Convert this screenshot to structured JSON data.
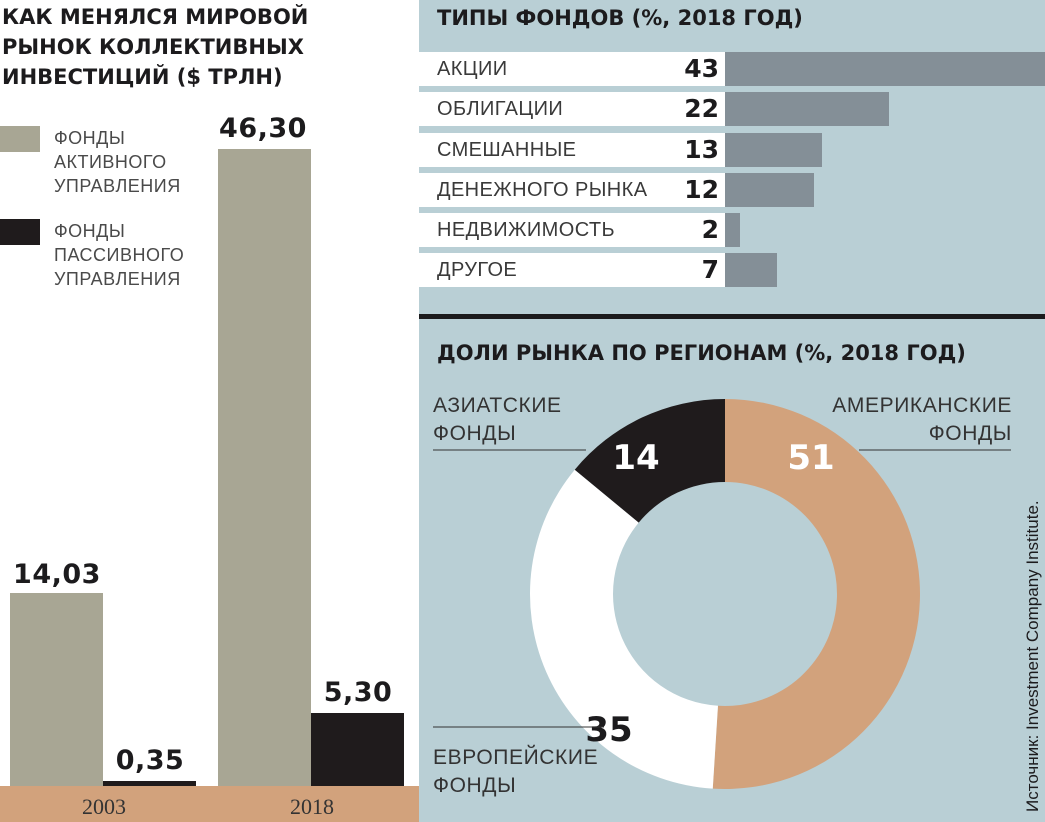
{
  "left_chart": {
    "title": [
      "КАК МЕНЯЛСЯ МИРОВОЙ",
      "РЫНОК КОЛЛЕКТИВНЫХ",
      "ИНВЕСТИЦИЙ ($ ТРЛН)"
    ],
    "legend": [
      {
        "lines": [
          "ФОНДЫ",
          "АКТИВНОГО",
          "УПРАВЛЕНИЯ"
        ],
        "color": "#a8a694"
      },
      {
        "lines": [
          "ФОНДЫ",
          "ПАССИВНОГО",
          "УПРАВЛЕНИЯ"
        ],
        "color": "#1f1b1c"
      }
    ],
    "bar_labels": {
      "a2003": "14,03",
      "p2003": "0,35",
      "a2018": "46,30",
      "p2018": "5,30"
    },
    "years": [
      "2003",
      "2018"
    ]
  },
  "types": {
    "title": "ТИПЫ ФОНДОВ (%, 2018 ГОД)",
    "bar_color": "#848f97"
  },
  "regions": {
    "title": "ДОЛИ РЫНКА ПО РЕГИОНАМ (%, 2018 ГОД)",
    "labels": {
      "asia": [
        "АЗИАТСКИЕ",
        "ФОНДЫ"
      ],
      "america": [
        "АМЕРИКАНСКИЕ",
        "ФОНДЫ"
      ],
      "europe": [
        "ЕВРОПЕЙСКИЕ",
        "ФОНДЫ"
      ]
    }
  },
  "source": "Источник: Investment Company Institute.",
  "chart_data": [
    {
      "type": "bar",
      "title": "КАК МЕНЯЛСЯ МИРОВОЙ РЫНОК КОЛЛЕКТИВНЫХ ИНВЕСТИЦИЙ ($ ТРЛН)",
      "categories": [
        "2003",
        "2018"
      ],
      "series": [
        {
          "name": "ФОНДЫ АКТИВНОГО УПРАВЛЕНИЯ",
          "values": [
            14.03,
            46.3
          ],
          "color": "#a8a694"
        },
        {
          "name": "ФОНДЫ ПАССИВНОГО УПРАВЛЕНИЯ",
          "values": [
            0.35,
            5.3
          ],
          "color": "#1f1b1c"
        }
      ],
      "ylim": [
        0,
        50
      ],
      "grid": false,
      "legend": "top-left"
    },
    {
      "type": "bar",
      "orientation": "horizontal",
      "title": "ТИПЫ ФОНДОВ (%, 2018 ГОД)",
      "categories": [
        "АКЦИИ",
        "ОБЛИГАЦИИ",
        "СМЕШАННЫЕ",
        "ДЕНЕЖНОГО РЫНКА",
        "НЕДВИЖИМОСТЬ",
        "ДРУГОЕ"
      ],
      "values": [
        43,
        22,
        13,
        12,
        2,
        7
      ],
      "xlim": [
        0,
        43
      ]
    },
    {
      "type": "pie",
      "donut": true,
      "title": "ДОЛИ РЫНКА ПО РЕГИОНАМ (%, 2018 ГОД)",
      "slices": [
        {
          "name": "АМЕРИКАНСКИЕ ФОНДЫ",
          "value": 51,
          "color": "#d2a27c"
        },
        {
          "name": "ЕВРОПЕЙСКИЕ ФОНДЫ",
          "value": 35,
          "color": "#ffffff"
        },
        {
          "name": "АЗИАТСКИЕ ФОНДЫ",
          "value": 14,
          "color": "#1f1b1c"
        }
      ]
    }
  ]
}
